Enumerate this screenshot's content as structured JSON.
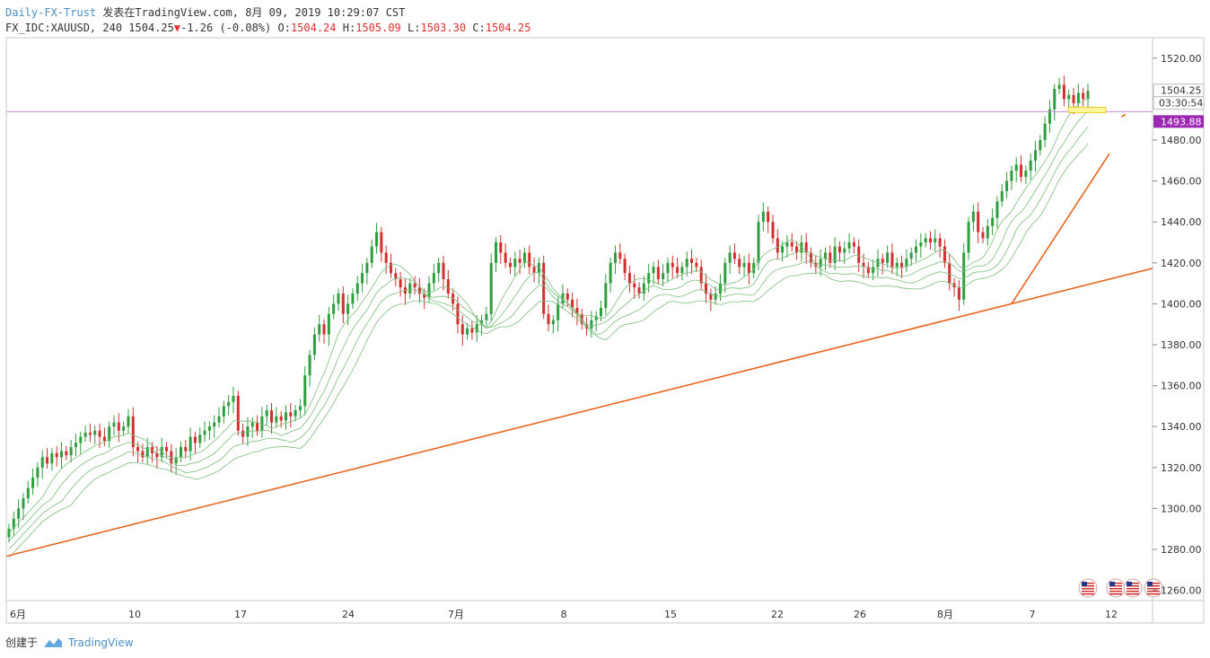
{
  "header": {
    "source": "Daily-FX-Trust",
    "published": "发表在TradingView.com, 8月 09, 2019 10:29:07 CST",
    "symbol": "FX_IDC:XAUUSD, 240",
    "last": "1504.25",
    "change": "-1.26 (-0.08%)",
    "o_label": "O:",
    "o_value": "1504.24",
    "h_label": "H:",
    "h_value": "1505.09",
    "l_label": "L:",
    "l_value": "1503.30",
    "c_label": "C:",
    "c_value": "1504.25"
  },
  "footer": {
    "created_with": "创建于",
    "brand": "TradingView"
  },
  "colors": {
    "up": "#26a69a",
    "up_body": "#2e9e3e",
    "down": "#d32f2f",
    "envelope": "#7cbf7c",
    "trendline": "#e8651f",
    "hline": "#c98ed8",
    "last_price_tag": "#ffffff",
    "alert_tag": "#9c27b0",
    "box": "#fff59d"
  },
  "chart_data": {
    "type": "candlestick",
    "symbol": "FX_IDC:XAUUSD",
    "timeframe": "240",
    "ylim": [
      1255,
      1530
    ],
    "y_ticks": [
      1260,
      1280,
      1300,
      1320,
      1340,
      1360,
      1380,
      1400,
      1420,
      1440,
      1460,
      1480,
      1500,
      1520
    ],
    "y_tick_labels": [
      "1260.00",
      "1280.00",
      "1300.00",
      "1320.00",
      "1340.00",
      "1360.00",
      "1380.00",
      "1400.00",
      "1420.00",
      "1440.00",
      "1460.00",
      "1480.00",
      "1500.00",
      "1520.00"
    ],
    "x_labels": [
      "6月",
      "10",
      "17",
      "24",
      "7月",
      "8",
      "15",
      "22",
      "26",
      "8月",
      "7",
      "12"
    ],
    "last_price": "1504.25",
    "countdown": "03:30:54",
    "alert_price": "1493.88",
    "alert_level": 1493.88,
    "closes": [
      1290,
      1295,
      1300,
      1305,
      1310,
      1315,
      1320,
      1325,
      1322,
      1327,
      1325,
      1328,
      1326,
      1330,
      1332,
      1335,
      1337,
      1336,
      1338,
      1335,
      1333,
      1340,
      1342,
      1338,
      1340,
      1345,
      1330,
      1328,
      1325,
      1330,
      1327,
      1325,
      1330,
      1328,
      1322,
      1325,
      1330,
      1328,
      1335,
      1332,
      1336,
      1338,
      1340,
      1342,
      1345,
      1350,
      1352,
      1355,
      1338,
      1335,
      1340,
      1342,
      1338,
      1345,
      1348,
      1342,
      1345,
      1343,
      1347,
      1345,
      1348,
      1350,
      1365,
      1375,
      1385,
      1390,
      1385,
      1395,
      1400,
      1405,
      1395,
      1400,
      1405,
      1410,
      1415,
      1420,
      1428,
      1435,
      1425,
      1420,
      1415,
      1412,
      1408,
      1405,
      1410,
      1408,
      1405,
      1403,
      1410,
      1415,
      1420,
      1412,
      1405,
      1400,
      1390,
      1385,
      1388,
      1386,
      1390,
      1392,
      1395,
      1420,
      1430,
      1425,
      1420,
      1418,
      1422,
      1420,
      1425,
      1418,
      1415,
      1420,
      1395,
      1390,
      1392,
      1400,
      1405,
      1402,
      1398,
      1395,
      1390,
      1388,
      1392,
      1394,
      1398,
      1410,
      1420,
      1425,
      1422,
      1415,
      1410,
      1408,
      1405,
      1410,
      1415,
      1418,
      1412,
      1415,
      1420,
      1418,
      1415,
      1418,
      1422,
      1420,
      1418,
      1410,
      1405,
      1402,
      1405,
      1410,
      1420,
      1425,
      1422,
      1418,
      1420,
      1415,
      1420,
      1440,
      1445,
      1440,
      1432,
      1425,
      1428,
      1430,
      1428,
      1425,
      1430,
      1425,
      1420,
      1418,
      1422,
      1425,
      1420,
      1428,
      1425,
      1427,
      1430,
      1428,
      1420,
      1418,
      1415,
      1418,
      1422,
      1420,
      1425,
      1418,
      1420,
      1418,
      1422,
      1425,
      1428,
      1430,
      1432,
      1430,
      1432,
      1428,
      1420,
      1410,
      1408,
      1402,
      1425,
      1440,
      1445,
      1435,
      1432,
      1438,
      1442,
      1450,
      1455,
      1460,
      1465,
      1468,
      1462,
      1465,
      1470,
      1475,
      1480,
      1488,
      1495,
      1505,
      1507,
      1500,
      1502,
      1498,
      1503,
      1500,
      1504
    ]
  }
}
